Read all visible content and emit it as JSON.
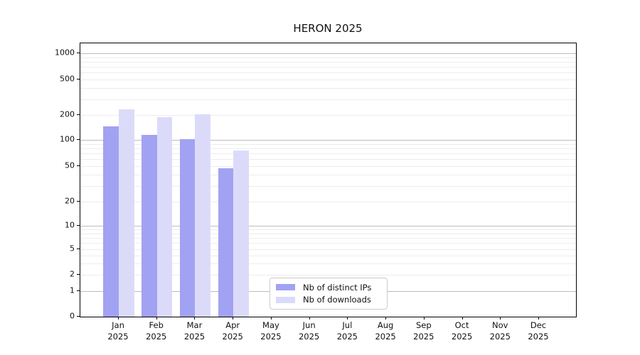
{
  "chart_data": {
    "type": "bar",
    "title": "HERON 2025",
    "y_scale": "symlog",
    "ylim": [
      0,
      1300
    ],
    "y_tick_labels": [
      0,
      1,
      2,
      5,
      10,
      20,
      50,
      100,
      200,
      500,
      1000
    ],
    "y_minor_gridlines": [
      2,
      3,
      4,
      5,
      6,
      7,
      8,
      9,
      20,
      30,
      40,
      50,
      60,
      70,
      80,
      90,
      200,
      300,
      400,
      500,
      600,
      700,
      800,
      900
    ],
    "y_major_gridlines": [
      1,
      10,
      100,
      1000
    ],
    "categories": [
      "Jan",
      "Feb",
      "Mar",
      "Apr",
      "May",
      "Jun",
      "Jul",
      "Aug",
      "Sep",
      "Oct",
      "Nov",
      "Dec"
    ],
    "x_year_suffix": "2025",
    "series": [
      {
        "name": "Nb of distinct IPs",
        "color": "#a2a2f2",
        "values": [
          145,
          116,
          103,
          47,
          null,
          null,
          null,
          null,
          null,
          null,
          null,
          null
        ]
      },
      {
        "name": "Nb of downloads",
        "color": "#dbdbf9",
        "values": [
          232,
          188,
          205,
          75,
          null,
          null,
          null,
          null,
          null,
          null,
          null,
          null
        ]
      }
    ],
    "legend_position": "lower center",
    "grid": true,
    "colors": {
      "axis": "#000000",
      "major_grid": "#bdbdbd",
      "minor_grid": "#ededed",
      "text": "#111111"
    }
  }
}
